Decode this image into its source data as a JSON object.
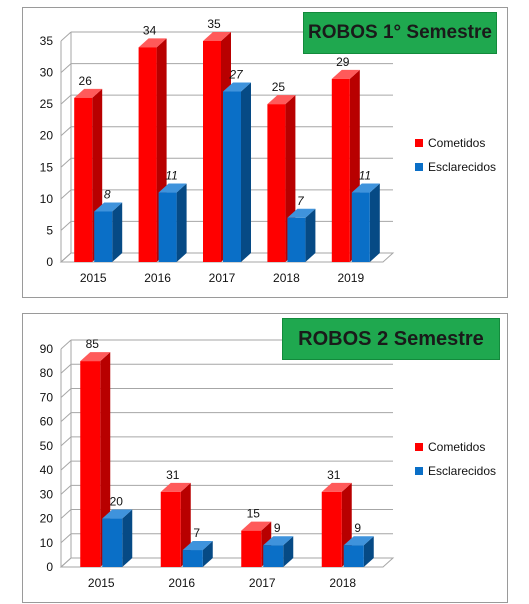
{
  "colors": {
    "cometidos": "#ff0000",
    "cometidos_side": "#b80000",
    "cometidos_top": "#ff5a5a",
    "esclarecidos": "#0a6fc7",
    "esclarecidos_side": "#064a85",
    "esclarecidos_top": "#3f93dc",
    "grid": "#a6a6a6",
    "title_bg": "#1fa84f"
  },
  "chart_data": [
    {
      "type": "bar",
      "title": "ROBOS 1° Semestre",
      "categories": [
        "2015",
        "2016",
        "2017",
        "2018",
        "2019"
      ],
      "series": [
        {
          "name": "Cometidos",
          "values": [
            26,
            34,
            35,
            25,
            29
          ]
        },
        {
          "name": "Esclarecidos",
          "values": [
            8,
            11,
            27,
            7,
            11
          ]
        }
      ],
      "ylim": [
        0,
        35
      ],
      "yticks": [
        0,
        5,
        10,
        15,
        20,
        25,
        30,
        35
      ],
      "grid": true,
      "legend": "right"
    },
    {
      "type": "bar",
      "title": "ROBOS 2 Semestre",
      "categories": [
        "2015",
        "2016",
        "2017",
        "2018"
      ],
      "series": [
        {
          "name": "Cometidos",
          "values": [
            85,
            31,
            15,
            31
          ]
        },
        {
          "name": "Esclarecidos",
          "values": [
            20,
            7,
            9,
            9
          ]
        }
      ],
      "ylim": [
        0,
        90
      ],
      "yticks": [
        0,
        10,
        20,
        30,
        40,
        50,
        60,
        70,
        80,
        90
      ],
      "grid": true,
      "legend": "right"
    }
  ]
}
